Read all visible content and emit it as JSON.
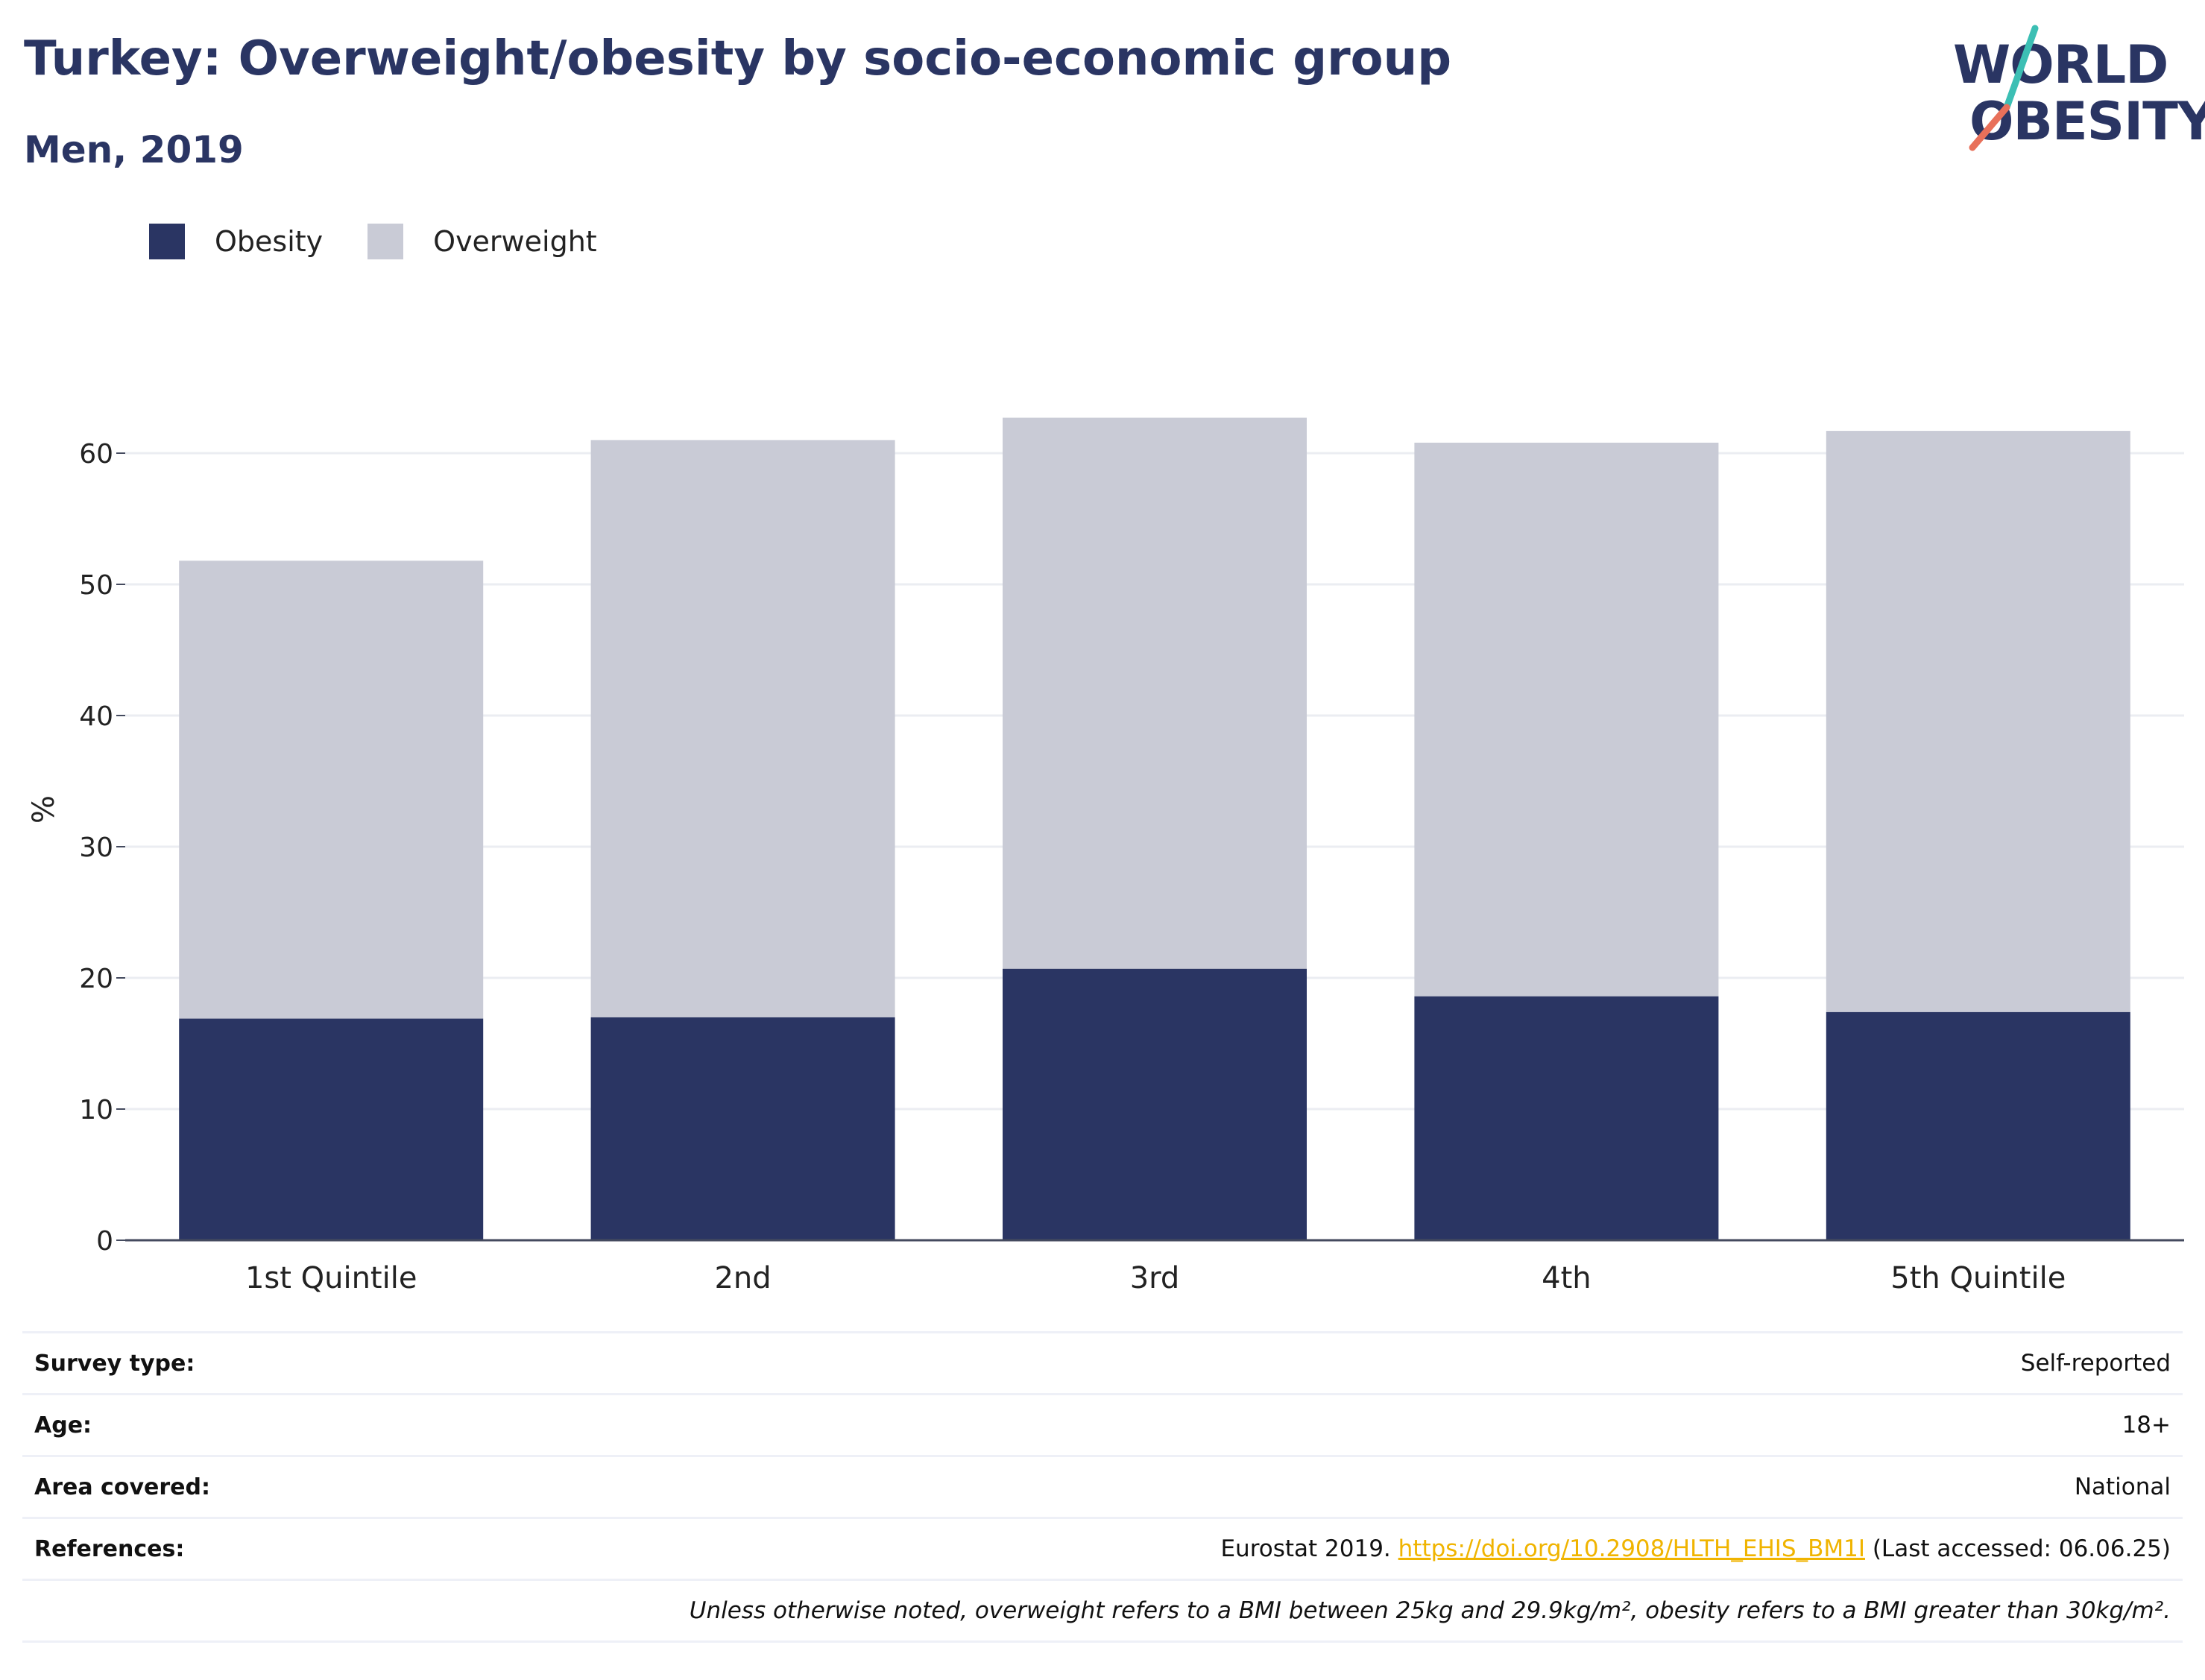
{
  "header": {
    "title": "Turkey: Overweight/obesity by socio-economic group",
    "subtitle": "Men, 2019"
  },
  "logo": {
    "line1": "WORLD",
    "line2": "OBESITY",
    "slash_top_color": "#3cbfb4",
    "slash_bottom_color": "#e8705a"
  },
  "legend": {
    "items": [
      {
        "label": "Obesity",
        "color": "#2a3563"
      },
      {
        "label": "Overweight",
        "color": "#c9cbd6"
      }
    ]
  },
  "chart_data": {
    "type": "bar",
    "stacked": true,
    "categories": [
      "1st Quintile",
      "2nd",
      "3rd",
      "4th",
      "5th Quintile"
    ],
    "series": [
      {
        "name": "Obesity",
        "color": "#2a3563",
        "values": [
          16.9,
          17.0,
          20.7,
          18.6,
          17.4
        ]
      },
      {
        "name": "Overweight",
        "color": "#c9cbd6",
        "values": [
          34.9,
          44.0,
          42.0,
          42.2,
          44.3
        ]
      }
    ],
    "ylabel": "%",
    "ylim": [
      0,
      65
    ],
    "yticks": [
      0,
      10,
      20,
      30,
      40,
      50,
      60
    ],
    "grid": true,
    "legend_position": "top-left"
  },
  "info": {
    "survey_type": {
      "label": "Survey type:",
      "value": "Self-reported"
    },
    "age": {
      "label": "Age:",
      "value": "18+"
    },
    "area": {
      "label": "Area covered:",
      "value": "National"
    },
    "references": {
      "label": "References:",
      "prefix": "Eurostat 2019.",
      "link": "https://doi.org/10.2908/HLTH_EHIS_BM1I",
      "suffix": "(Last accessed: 06.06.25)"
    },
    "note": "Unless otherwise noted, overweight refers to a BMI between 25kg and 29.9kg/m², obesity refers to a BMI greater than 30kg/m²."
  }
}
